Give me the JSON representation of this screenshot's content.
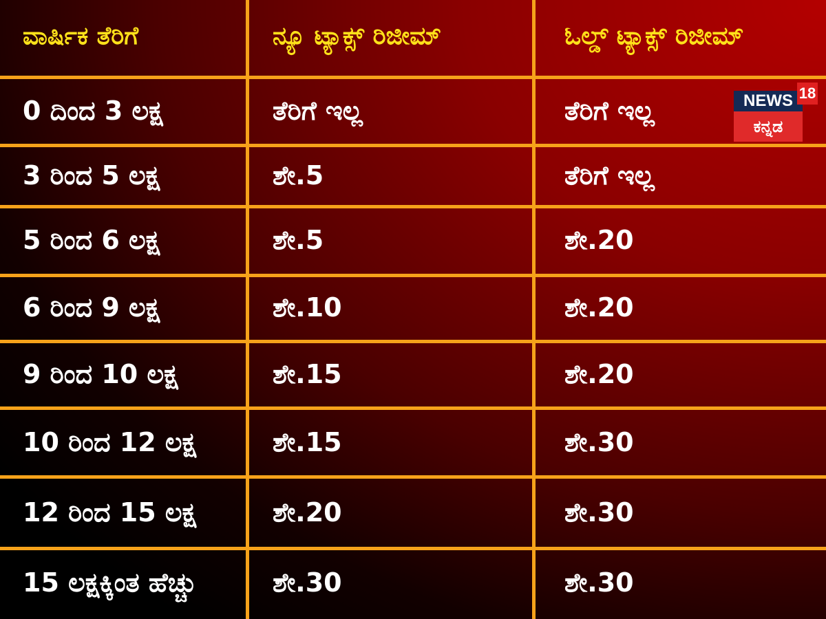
{
  "headers": [
    "ವಾರ್ಷಿಕ ತೆರಿಗೆ",
    "ನ್ಯೂ ಟ್ಯಾಕ್ಸ್ ರಿಜೀಮ್",
    "ಓಲ್ಡ್ ಟ್ಯಾಕ್ಸ್ ರಿಜೀಮ್"
  ],
  "rows": [
    [
      "0 ದಿಂದ 3 ಲಕ್ಷ",
      "ತೆರಿಗೆ ಇಲ್ಲ",
      "ತೆರಿಗೆ ಇಲ್ಲ"
    ],
    [
      "3 ರಿಂದ 5 ಲಕ್ಷ",
      "ಶೇ.5",
      "ತೆರಿಗೆ ಇಲ್ಲ"
    ],
    [
      "5 ರಿಂದ 6 ಲಕ್ಷ",
      "ಶೇ.5",
      "ಶೇ.20"
    ],
    [
      "6 ರಿಂದ 9 ಲಕ್ಷ",
      "ಶೇ.10",
      "ಶೇ.20"
    ],
    [
      "9 ರಿಂದ 10 ಲಕ್ಷ",
      "ಶೇ.15",
      "ಶೇ.20"
    ],
    [
      "10 ರಿಂದ 12 ಲಕ್ಷ",
      "ಶೇ.15",
      "ಶೇ.30"
    ],
    [
      "12 ರಿಂದ 15 ಲಕ್ಷ",
      "ಶೇ.20",
      "ಶೇ.30"
    ],
    [
      "15 ಲಕ್ಷಕ್ಕಿಂತ ಹೆಚ್ಚು",
      "ಶೇ.30",
      "ಶೇ.30"
    ]
  ],
  "logo": {
    "news": "NEWS",
    "number": "18",
    "kannada": "ಕನ್ನಡ"
  },
  "colors": {
    "header_text": "#ffe21a",
    "grid": "#f6a21a",
    "body_text": "#ffffff",
    "background_red": "#b40000"
  }
}
